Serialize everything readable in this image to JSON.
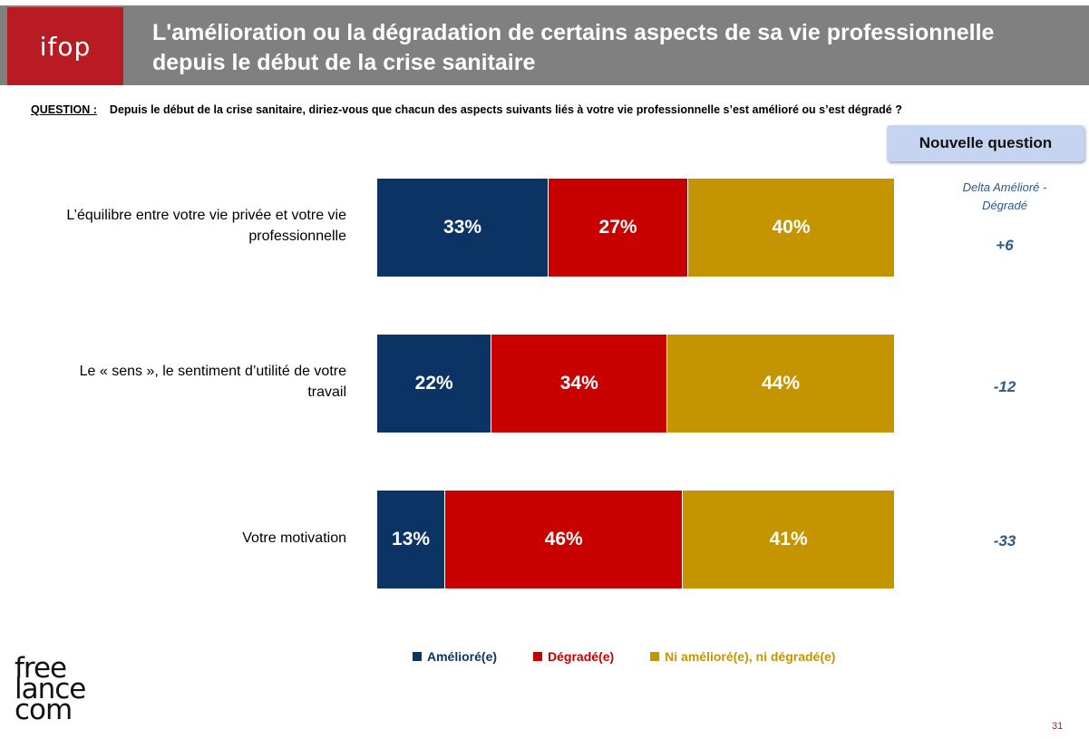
{
  "header": {
    "logo_text": "ifop",
    "title_line1": "L'amélioration ou la dégradation de certains aspects de sa vie professionnelle",
    "title_line2": "depuis le début de la crise sanitaire"
  },
  "question": {
    "label": "QUESTION :",
    "text": "Depuis le début de la crise sanitaire, diriez-vous que chacun des aspects suivants liés à votre vie professionnelle s’est amélioré ou s’est dégradé ?"
  },
  "badge": {
    "text": "Nouvelle question"
  },
  "delta_header": {
    "line1": "Delta Amélioré -",
    "line2": "Dégradé"
  },
  "colors": {
    "ameliore": "#0b3464",
    "degrade": "#c80000",
    "ni": "#c49500",
    "header_band": "#808080",
    "logo_red": "#b81c22",
    "delta_text": "#2e5a88"
  },
  "chart_data": {
    "type": "bar",
    "orientation": "horizontal",
    "stacked": true,
    "normalized": true,
    "categories": [
      "L’équilibre entre votre vie privée et votre vie professionnelle",
      "Le « sens », le sentiment d’utilité de votre travail",
      "Votre motivation"
    ],
    "category_lines": [
      [
        "L’équilibre entre votre vie privée et votre vie",
        "professionnelle"
      ],
      [
        "Le « sens », le sentiment d’utilité de votre",
        "travail"
      ],
      [
        "Votre motivation"
      ]
    ],
    "series": [
      {
        "name": "Amélioré(e)",
        "values": [
          33,
          22,
          13
        ],
        "labels": [
          "33%",
          "22%",
          "13%"
        ]
      },
      {
        "name": "Dégradé(e)",
        "values": [
          27,
          34,
          46
        ],
        "labels": [
          "27%",
          "34%",
          "46%"
        ]
      },
      {
        "name": "Ni amélioré(e), ni dégradé(e)",
        "values": [
          40,
          44,
          41
        ],
        "labels": [
          "40%",
          "44%",
          "41%"
        ]
      }
    ],
    "deltas": [
      "+6",
      "-12",
      "-33"
    ],
    "xlim": [
      0,
      100
    ],
    "legend_position": "bottom",
    "grid": false
  },
  "footer": {
    "brand_line1": "free",
    "brand_line2": "lance",
    "brand_line3": "com",
    "page_number": "31"
  }
}
